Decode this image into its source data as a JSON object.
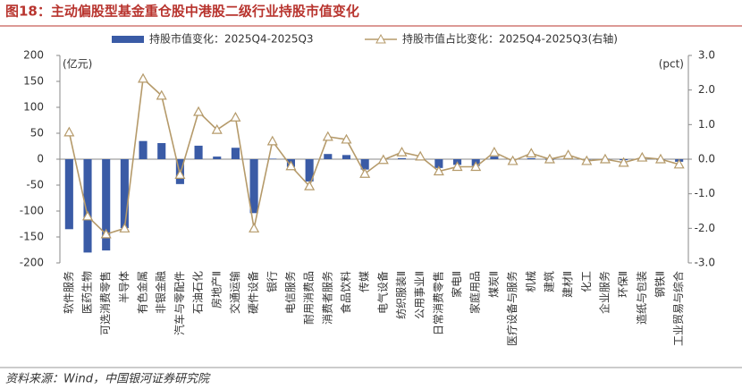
{
  "chart_data": {
    "type": "bar",
    "title": "图18：主动偏股型基金重仓股中港股二级行业持股市值变化",
    "ylabel": "(亿元)",
    "y2label": "(pct)",
    "categories": [
      "软件服务",
      "医药生物",
      "可选消费零售",
      "半导体",
      "有色金属",
      "非银金融",
      "汽车与零配件",
      "石油石化",
      "房地产Ⅱ",
      "交通运输",
      "硬件设备",
      "银行",
      "电信服务",
      "耐用消费品",
      "消费者服务",
      "食品饮料",
      "传媒",
      "电气设备",
      "纺织服装Ⅱ",
      "公用事业Ⅱ",
      "日常消费零售",
      "家电Ⅱ",
      "家庭用品",
      "煤炭Ⅱ",
      "医疗设备与服务",
      "机械",
      "建筑",
      "建材Ⅱ",
      "化工",
      "企业服务",
      "环保Ⅱ",
      "造纸与包装",
      "钢铁Ⅱ",
      "工业贸易与综合"
    ],
    "series": [
      {
        "name": "持股市值变化：2025Q4-2025Q3",
        "type": "bar",
        "color": "#3a5ba6",
        "values": [
          -135,
          -180,
          -176,
          -133,
          35,
          31,
          -48,
          26,
          5,
          22,
          -104,
          1,
          -15,
          -43,
          10,
          8,
          -20,
          0,
          2,
          1,
          -17,
          -11,
          -13,
          5,
          -2,
          2,
          -2,
          2,
          -1,
          1,
          -2,
          1,
          -2,
          -5
        ]
      },
      {
        "name": "持股市值占比变化：2025Q4-2025Q3(右轴)",
        "type": "line",
        "axis": "y2",
        "color": "#b59a6a",
        "values": [
          0.78,
          -1.65,
          -2.17,
          -2.0,
          2.33,
          1.84,
          -0.45,
          1.37,
          0.85,
          1.21,
          -2.0,
          0.52,
          -0.2,
          -0.78,
          0.65,
          0.57,
          -0.42,
          -0.02,
          0.2,
          0.08,
          -0.35,
          -0.22,
          -0.22,
          0.2,
          -0.05,
          0.17,
          0.0,
          0.12,
          -0.05,
          0.0,
          -0.1,
          0.05,
          0.0,
          -0.15
        ]
      }
    ],
    "ylim": [
      -200,
      200
    ],
    "yticks": [
      -200,
      -150,
      -100,
      -50,
      0,
      50,
      100,
      150,
      200
    ],
    "y2lim": [
      -3,
      3
    ],
    "y2ticks": [
      {
        "value": -3,
        "label": "-3.0"
      },
      {
        "value": -2,
        "label": "-2.0"
      },
      {
        "value": -1,
        "label": "-1.0"
      },
      {
        "value": 0,
        "label": "0.0"
      },
      {
        "value": 1,
        "label": "1.0"
      },
      {
        "value": 2,
        "label": "2.0"
      },
      {
        "value": 3,
        "label": "3.0"
      }
    ],
    "grid": false
  },
  "source": "资料来源：Wind，中国银河证券研究院"
}
